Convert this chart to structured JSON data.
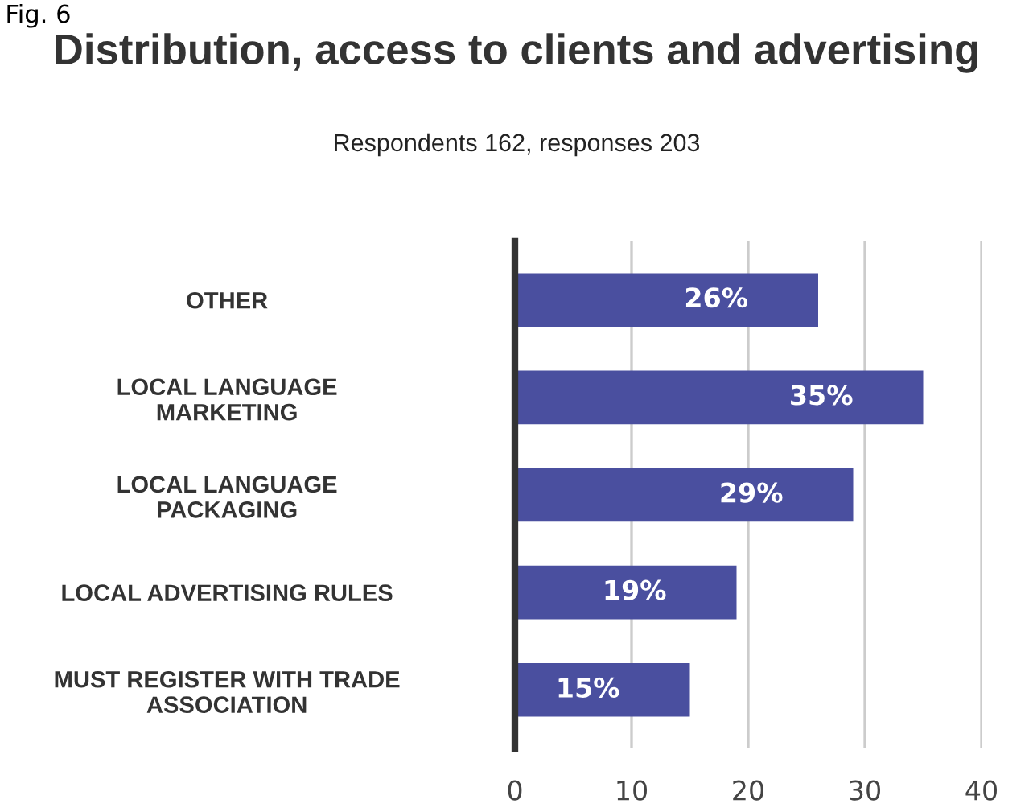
{
  "chart_data": {
    "type": "bar",
    "orientation": "horizontal",
    "title": "Distribution, access to clients and advertising",
    "subtitle": "Respondents 162, responses 203",
    "annotations": [
      "Fig. 6"
    ],
    "categories": [
      "OTHER",
      "LOCAL LANGUAGE\nMARKETING",
      "LOCAL LANGUAGE\nPACKAGING",
      "LOCAL ADVERTISING RULES",
      "MUST REGISTER WITH TRADE\nASSOCIATION"
    ],
    "values": [
      26,
      35,
      29,
      19,
      15
    ],
    "value_labels": [
      "26%",
      "35%",
      "29%",
      "19%",
      "15%"
    ],
    "color": "#4a4f9f",
    "xlim": [
      0,
      40
    ],
    "xticks": [
      0,
      10,
      20,
      30,
      40
    ],
    "grid": "x",
    "legend": false
  }
}
